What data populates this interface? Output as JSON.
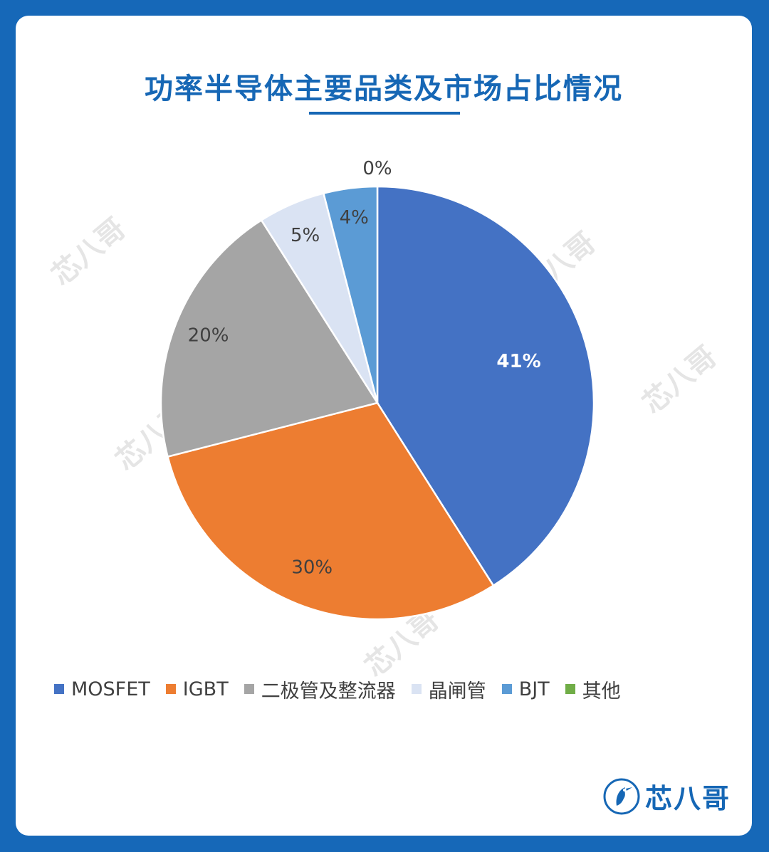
{
  "title": "功率半导体主要品类及市场占比情况",
  "chart_data": {
    "type": "pie",
    "categories": [
      "MOSFET",
      "IGBT",
      "二极管及整流器",
      "晶闸管",
      "BJT",
      "其他"
    ],
    "values": [
      41,
      30,
      20,
      5,
      4,
      0
    ],
    "data_labels": [
      "41%",
      "30%",
      "20%",
      "5%",
      "4%",
      "0%"
    ],
    "colors": [
      "#4472c4",
      "#ed7d31",
      "#a5a5a5",
      "#dae3f3",
      "#5b9bd5",
      "#70ad47"
    ],
    "label_colors": [
      "#ffffff",
      "#404040",
      "#404040",
      "#404040",
      "#404040",
      "#404040"
    ],
    "legend_position": "bottom"
  },
  "watermark": {
    "text": "芯八哥"
  },
  "logo": {
    "text": "芯八哥",
    "icon": "kingfisher-bird-icon"
  }
}
